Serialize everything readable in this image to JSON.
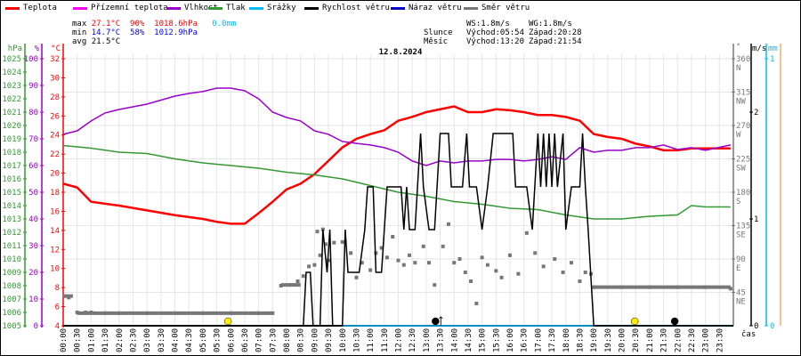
{
  "legend": [
    {
      "label": "Teplota",
      "color": "#ff0000"
    },
    {
      "label": "Přízemní teplota",
      "color": "#ff00ff"
    },
    {
      "label": "Vlhkost",
      "color": "#9900cc"
    },
    {
      "label": "Tlak",
      "color": "#339933"
    },
    {
      "label": "Srážky",
      "color": "#00bbff"
    },
    {
      "label": "Rychlost větru",
      "color": "#000000"
    },
    {
      "label": "Náraz větru",
      "color": "#0000cc"
    },
    {
      "label": "Směr větru",
      "color": "#777777"
    }
  ],
  "stats": {
    "max_label": "max",
    "max_temp": "27.1°C",
    "max_hum": "90%",
    "max_press": "1018.6hPa",
    "max_rain": "0.0mm",
    "min_label": "min",
    "min_temp": "14.7°C",
    "min_hum": "58%",
    "min_press": "1012.9hPa",
    "avg_label": "avg",
    "avg_temp": "21.5°C"
  },
  "astro": {
    "ws": "WS:1.8m/s",
    "wg": "WG:1.8m/s",
    "sun_label": "Slunce",
    "sunrise": "Východ:05:54",
    "sunset": "Západ:20:28",
    "moon_label": "Měsíc",
    "moonrise": "Východ:13:20",
    "moonset": "Západ:21:54"
  },
  "chart_data": {
    "type": "line",
    "title": "12.8.2024",
    "xlabel": "čas",
    "x_ticks": [
      "00:00",
      "00:30",
      "01:00",
      "01:30",
      "02:00",
      "02:30",
      "03:00",
      "03:30",
      "04:00",
      "04:30",
      "05:00",
      "05:30",
      "06:00",
      "06:30",
      "07:00",
      "07:30",
      "08:00",
      "08:30",
      "09:00",
      "09:30",
      "10:00",
      "10:30",
      "11:00",
      "11:30",
      "12:00",
      "12:30",
      "13:00",
      "13:30",
      "14:00",
      "14:30",
      "15:00",
      "15:30",
      "16:00",
      "16:30",
      "17:00",
      "17:30",
      "18:00",
      "18:30",
      "19:00",
      "19:30",
      "20:00",
      "20:30",
      "21:00",
      "21:30",
      "22:00",
      "22:30",
      "23:00",
      "23:30"
    ],
    "axes": {
      "pressure": {
        "unit": "hPa",
        "range": [
          1005,
          1025
        ],
        "ticks": [
          1005,
          1006,
          1007,
          1008,
          1009,
          1010,
          1011,
          1012,
          1013,
          1014,
          1015,
          1016,
          1017,
          1018,
          1019,
          1020,
          1021,
          1022,
          1023,
          1024,
          1025
        ],
        "color": "#339933"
      },
      "humidity": {
        "unit": "%",
        "range": [
          0,
          100
        ],
        "ticks": [
          0,
          10,
          20,
          30,
          40,
          50,
          60,
          70,
          80,
          90,
          100
        ],
        "color": "#9900cc"
      },
      "temperature": {
        "unit": "°C",
        "range": [
          4,
          32
        ],
        "ticks": [
          4,
          6,
          8,
          10,
          12,
          14,
          16,
          18,
          20,
          22,
          24,
          26,
          28,
          30,
          32
        ],
        "color": "#ff0000"
      },
      "direction": {
        "unit": "°",
        "range": [
          0,
          360
        ],
        "ticks": [
          {
            "v": 45,
            "c": "NE"
          },
          {
            "v": 90,
            "c": "E"
          },
          {
            "v": 135,
            "c": "SE"
          },
          {
            "v": 180,
            "c": "S"
          },
          {
            "v": 225,
            "c": "SW"
          },
          {
            "v": 270,
            "c": "W"
          },
          {
            "v": 315,
            "c": "NW"
          },
          {
            "v": 360,
            "c": "N"
          }
        ],
        "color": "#777777"
      },
      "wind": {
        "unit": "m/s",
        "range": [
          0,
          2.5
        ],
        "ticks": [
          0,
          1,
          2
        ],
        "color": "#000000"
      },
      "rain": {
        "unit": "mm",
        "range": [
          0,
          1
        ],
        "ticks": [
          0,
          1
        ],
        "color": "#00bbff"
      }
    },
    "series": [
      {
        "name": "Teplota",
        "axis": "temperature",
        "color": "#ff0000",
        "points": [
          [
            0,
            18.9
          ],
          [
            0.5,
            18.5
          ],
          [
            1,
            17.0
          ],
          [
            1.5,
            16.8
          ],
          [
            2,
            16.6
          ],
          [
            3,
            16.1
          ],
          [
            4,
            15.6
          ],
          [
            5,
            15.2
          ],
          [
            5.5,
            14.9
          ],
          [
            6,
            14.7
          ],
          [
            6.5,
            14.7
          ],
          [
            7,
            15.8
          ],
          [
            7.5,
            17.0
          ],
          [
            8,
            18.3
          ],
          [
            8.5,
            18.9
          ],
          [
            9,
            19.9
          ],
          [
            9.5,
            21.3
          ],
          [
            10,
            22.7
          ],
          [
            10.5,
            23.6
          ],
          [
            11,
            24.1
          ],
          [
            11.5,
            24.5
          ],
          [
            12,
            25.5
          ],
          [
            12.5,
            25.9
          ],
          [
            13,
            26.4
          ],
          [
            13.5,
            26.7
          ],
          [
            14,
            27.0
          ],
          [
            14.5,
            26.4
          ],
          [
            15,
            26.4
          ],
          [
            15.5,
            26.7
          ],
          [
            16,
            26.6
          ],
          [
            16.5,
            26.4
          ],
          [
            17,
            26.1
          ],
          [
            17.5,
            26.1
          ],
          [
            18,
            25.9
          ],
          [
            18.5,
            25.5
          ],
          [
            19,
            24.1
          ],
          [
            19.5,
            23.8
          ],
          [
            20,
            23.6
          ],
          [
            20.5,
            23.1
          ],
          [
            21,
            22.8
          ],
          [
            21.5,
            22.4
          ],
          [
            22,
            22.4
          ],
          [
            22.5,
            22.6
          ],
          [
            23,
            22.6
          ],
          [
            23.9,
            22.6
          ]
        ]
      },
      {
        "name": "Vlhkost",
        "axis": "humidity",
        "color": "#9900cc",
        "points": [
          [
            0,
            71.7
          ],
          [
            0.5,
            73
          ],
          [
            1,
            76.7
          ],
          [
            1.5,
            79.7
          ],
          [
            2,
            81
          ],
          [
            2.5,
            82
          ],
          [
            3,
            83
          ],
          [
            3.5,
            84.5
          ],
          [
            4,
            86
          ],
          [
            4.5,
            87
          ],
          [
            5,
            87.7
          ],
          [
            5.5,
            89
          ],
          [
            6,
            89
          ],
          [
            6.5,
            88
          ],
          [
            7,
            85
          ],
          [
            7.5,
            80
          ],
          [
            8,
            78
          ],
          [
            8.5,
            76.7
          ],
          [
            9,
            73
          ],
          [
            9.5,
            71.7
          ],
          [
            10,
            69
          ],
          [
            10.5,
            68.3
          ],
          [
            11,
            67.7
          ],
          [
            11.5,
            66.7
          ],
          [
            12,
            65
          ],
          [
            12.5,
            61.7
          ],
          [
            13,
            60
          ],
          [
            13.5,
            61.7
          ],
          [
            14,
            61
          ],
          [
            14.5,
            61.7
          ],
          [
            15,
            61.7
          ],
          [
            15.5,
            62.3
          ],
          [
            16,
            62.3
          ],
          [
            16.5,
            61.7
          ],
          [
            17,
            62.3
          ],
          [
            17.5,
            63.3
          ],
          [
            18,
            62.3
          ],
          [
            18.5,
            66.7
          ],
          [
            19,
            65
          ],
          [
            19.5,
            65.7
          ],
          [
            20,
            65.7
          ],
          [
            20.5,
            66.7
          ],
          [
            21,
            66.7
          ],
          [
            21.5,
            67.7
          ],
          [
            22,
            66
          ],
          [
            22.5,
            66.7
          ],
          [
            23,
            65.7
          ],
          [
            23.9,
            67.7
          ]
        ]
      },
      {
        "name": "Tlak",
        "axis": "pressure",
        "color": "#339933",
        "points": [
          [
            0,
            1018.5
          ],
          [
            1,
            1018.3
          ],
          [
            2,
            1018.0
          ],
          [
            3,
            1017.9
          ],
          [
            4,
            1017.5
          ],
          [
            5,
            1017.2
          ],
          [
            6,
            1017.0
          ],
          [
            7,
            1016.8
          ],
          [
            8,
            1016.5
          ],
          [
            9,
            1016.3
          ],
          [
            10,
            1016.0
          ],
          [
            11,
            1015.5
          ],
          [
            12,
            1015.0
          ],
          [
            13,
            1014.7
          ],
          [
            14,
            1014.3
          ],
          [
            15,
            1014.1
          ],
          [
            16,
            1013.8
          ],
          [
            17,
            1013.7
          ],
          [
            18,
            1013.3
          ],
          [
            19,
            1013.0
          ],
          [
            20,
            1013.0
          ],
          [
            21,
            1013.2
          ],
          [
            22,
            1013.3
          ],
          [
            22.5,
            1014.0
          ],
          [
            23,
            1013.9
          ],
          [
            23.9,
            1013.9
          ]
        ]
      },
      {
        "name": "Srážky",
        "axis": "rain",
        "color": "#00bbff",
        "points": [
          [
            9.9,
            0
          ],
          [
            23.9,
            0
          ]
        ]
      },
      {
        "name": "Rychlost větru",
        "axis": "wind",
        "color": "#000000",
        "points": [
          [
            0,
            0
          ],
          [
            8.6,
            0
          ],
          [
            8.7,
            0.5
          ],
          [
            8.85,
            0.5
          ],
          [
            8.95,
            0
          ],
          [
            9.2,
            0
          ],
          [
            9.3,
            0.9
          ],
          [
            9.45,
            0.5
          ],
          [
            9.55,
            0.9
          ],
          [
            9.65,
            0
          ],
          [
            10.0,
            0
          ],
          [
            10.1,
            0.9
          ],
          [
            10.2,
            0.5
          ],
          [
            10.6,
            0.5
          ],
          [
            10.8,
            0.9
          ],
          [
            10.9,
            1.3
          ],
          [
            11.1,
            1.3
          ],
          [
            11.2,
            0.5
          ],
          [
            11.4,
            0.5
          ],
          [
            11.6,
            1.3
          ],
          [
            12.1,
            1.3
          ],
          [
            12.2,
            0.9
          ],
          [
            12.3,
            1.3
          ],
          [
            12.4,
            0.9
          ],
          [
            12.6,
            0.9
          ],
          [
            12.8,
            1.8
          ],
          [
            12.9,
            1.3
          ],
          [
            13.1,
            0.9
          ],
          [
            13.3,
            0.9
          ],
          [
            13.5,
            1.8
          ],
          [
            13.8,
            1.8
          ],
          [
            13.9,
            1.3
          ],
          [
            14.3,
            1.3
          ],
          [
            14.45,
            1.8
          ],
          [
            14.55,
            1.3
          ],
          [
            14.8,
            1.3
          ],
          [
            15.0,
            0.9
          ],
          [
            15.2,
            1.3
          ],
          [
            15.4,
            1.8
          ],
          [
            16.1,
            1.8
          ],
          [
            16.2,
            1.3
          ],
          [
            16.6,
            1.3
          ],
          [
            16.8,
            0.9
          ],
          [
            17.0,
            1.8
          ],
          [
            17.1,
            1.3
          ],
          [
            17.2,
            1.8
          ],
          [
            17.3,
            1.3
          ],
          [
            17.4,
            1.8
          ],
          [
            17.5,
            1.3
          ],
          [
            17.6,
            1.8
          ],
          [
            17.7,
            1.3
          ],
          [
            17.9,
            1.8
          ],
          [
            18.0,
            0.9
          ],
          [
            18.2,
            1.3
          ],
          [
            18.5,
            1.3
          ],
          [
            18.6,
            1.8
          ],
          [
            18.7,
            1.3
          ],
          [
            18.8,
            0.9
          ],
          [
            19.0,
            0
          ],
          [
            23.9,
            0
          ]
        ]
      }
    ],
    "wind_direction": {
      "name": "Směr větru",
      "color": "#777777",
      "points": [
        [
          0.05,
          40
        ],
        [
          0.2,
          38
        ],
        [
          0.5,
          18
        ],
        [
          0.8,
          18
        ],
        [
          1.0,
          18
        ],
        [
          1.5,
          17
        ],
        [
          2,
          17
        ],
        [
          3,
          17
        ],
        [
          4,
          17
        ],
        [
          5,
          17
        ],
        [
          6,
          17
        ],
        [
          7,
          17
        ],
        [
          7.5,
          17
        ],
        [
          7.8,
          54
        ],
        [
          8.1,
          55
        ],
        [
          8.4,
          60
        ],
        [
          8.6,
          67
        ],
        [
          8.8,
          80
        ],
        [
          9.0,
          82
        ],
        [
          9.1,
          127
        ],
        [
          9.2,
          95
        ],
        [
          9.3,
          130
        ],
        [
          9.4,
          110
        ],
        [
          9.5,
          88
        ],
        [
          9.7,
          112
        ],
        [
          10.0,
          113
        ],
        [
          10.3,
          98
        ],
        [
          10.5,
          65
        ],
        [
          10.7,
          85
        ],
        [
          11.0,
          75
        ],
        [
          11.2,
          98
        ],
        [
          11.4,
          105
        ],
        [
          11.6,
          92
        ],
        [
          11.8,
          120
        ],
        [
          12.0,
          88
        ],
        [
          12.2,
          82
        ],
        [
          12.4,
          95
        ],
        [
          12.6,
          85
        ],
        [
          12.9,
          107
        ],
        [
          13.1,
          85
        ],
        [
          13.3,
          55
        ],
        [
          13.6,
          107
        ],
        [
          13.8,
          137
        ],
        [
          14.0,
          85
        ],
        [
          14.2,
          90
        ],
        [
          14.4,
          72
        ],
        [
          14.6,
          60
        ],
        [
          14.8,
          30
        ],
        [
          15.0,
          92
        ],
        [
          15.2,
          82
        ],
        [
          15.5,
          74
        ],
        [
          15.7,
          65
        ],
        [
          16.0,
          95
        ],
        [
          16.3,
          70
        ],
        [
          16.6,
          125
        ],
        [
          16.9,
          98
        ],
        [
          17.2,
          80
        ],
        [
          17.6,
          90
        ],
        [
          17.9,
          72
        ],
        [
          18.2,
          85
        ],
        [
          18.5,
          60
        ],
        [
          18.7,
          72
        ],
        [
          18.9,
          70
        ],
        [
          19.0,
          52
        ],
        [
          20,
          52
        ],
        [
          21,
          52
        ],
        [
          22,
          52
        ],
        [
          23,
          52
        ],
        [
          23.9,
          50
        ]
      ]
    },
    "markers": [
      {
        "type": "sunrise",
        "time": "05:54",
        "color": "#ffee00"
      },
      {
        "type": "sunset",
        "time": "20:28",
        "color": "#ffee00"
      },
      {
        "type": "moonrise",
        "time": "13:20",
        "color": "#000000"
      },
      {
        "type": "moonset",
        "time": "21:54",
        "color": "#000000"
      }
    ],
    "grid": true,
    "legend_position": "top"
  }
}
